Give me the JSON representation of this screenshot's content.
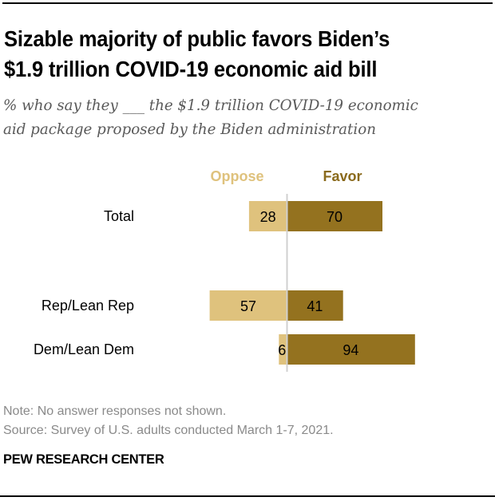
{
  "header": {
    "title_line1": "Sizable majority of public favors Biden’s",
    "title_line2": "$1.9 trillion COVID-19 economic aid bill",
    "subtitle_line1": "% who say they ___ the $1.9 trillion COVID-19 economic",
    "subtitle_line2": "aid package proposed by the Biden administration"
  },
  "footer": {
    "note": "Note: No answer responses not shown.",
    "source": "Source: Survey of U.S. adults conducted March 1-7, 2021.",
    "brand": "PEW RESEARCH CENTER"
  },
  "colors": {
    "oppose": "#dfc27d",
    "favor": "#94721f",
    "oppose_text": "#dfc27d",
    "favor_text": "#8a6a1c",
    "zero_line": "#d0d0d0"
  },
  "chart_data": {
    "type": "bar",
    "orientation": "horizontal-diverging",
    "title": "Sizable majority of public favors Biden’s $1.9 trillion COVID-19 economic aid bill",
    "subtitle": "% who say they ___ the $1.9 trillion COVID-19 economic aid package proposed by the Biden administration",
    "categories": [
      "Total",
      "Rep/Lean Rep",
      "Dem/Lean Dem"
    ],
    "series": [
      {
        "name": "Oppose",
        "side": "left",
        "values": [
          28,
          57,
          6
        ]
      },
      {
        "name": "Favor",
        "side": "right",
        "values": [
          70,
          41,
          94
        ]
      }
    ],
    "legend": [
      "Oppose",
      "Favor"
    ],
    "legend_position": "top",
    "xlabel": "",
    "ylabel": "",
    "grid": false,
    "xlim": [
      -100,
      100
    ]
  }
}
